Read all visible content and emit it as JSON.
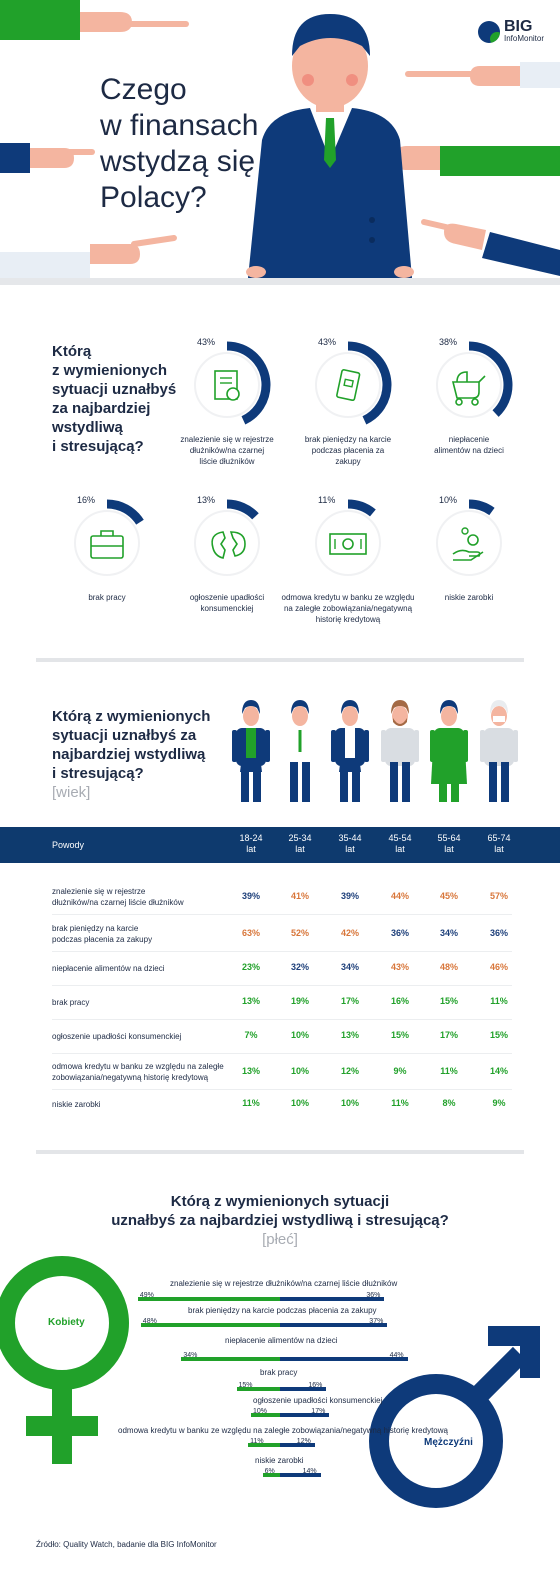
{
  "header": {
    "title_lines": [
      "Czego",
      "w finansach",
      "wstydzą się",
      "Polacy?"
    ],
    "logo_big": "BIG",
    "logo_sub": "InfoMonitor"
  },
  "section1": {
    "question_lines": [
      "Którą",
      "z wymienionych",
      "sytuacji uznałbyś",
      "za najbardziej",
      "wstydliwą",
      "i stresującą?"
    ],
    "items": [
      {
        "pct": "43%",
        "value": 43,
        "label_lines": [
          "znalezienie się w rejestrze",
          "dłużników/na czarnej",
          "liście dłużników"
        ],
        "icon": "document-icon"
      },
      {
        "pct": "43%",
        "value": 43,
        "label_lines": [
          "brak pieniędzy na karcie",
          "podczas płacenia za",
          "zakupy"
        ],
        "icon": "card-icon"
      },
      {
        "pct": "38%",
        "value": 38,
        "label_lines": [
          "niepłacenie",
          "alimentów na dzieci"
        ],
        "icon": "stroller-icon"
      },
      {
        "pct": "16%",
        "value": 16,
        "label_lines": [
          "brak pracy"
        ],
        "icon": "briefcase-icon"
      },
      {
        "pct": "13%",
        "value": 13,
        "label_lines": [
          "ogłoszenie upadłości",
          "konsumenckiej"
        ],
        "icon": "broken-piggy-icon"
      },
      {
        "pct": "11%",
        "value": 11,
        "label_lines": [
          "odmowa kredytu w banku ze względu",
          "na zaległe zobowiązania/negatywną",
          "historię kredytową"
        ],
        "icon": "banknote-icon"
      },
      {
        "pct": "10%",
        "value": 10,
        "label_lines": [
          "niskie zarobki"
        ],
        "icon": "coins-hand-icon"
      }
    ]
  },
  "section2": {
    "question_lines": [
      "Którą z wymienionych",
      "sytuacji uznałbyś za",
      "najbardziej wstydliwą",
      "i stresującą?"
    ],
    "subtitle": "[wiek]",
    "reasons_header": "Powody",
    "ages": [
      {
        "line1": "18-24",
        "line2": "lat"
      },
      {
        "line1": "25-34",
        "line2": "lat"
      },
      {
        "line1": "35-44",
        "line2": "lat"
      },
      {
        "line1": "45-54",
        "line2": "lat"
      },
      {
        "line1": "55-64",
        "line2": "lat"
      },
      {
        "line1": "65-74",
        "line2": "lat"
      }
    ],
    "colors": {
      "blue": "#1d3f7a",
      "orange": "#d8763a",
      "green": "#21a12a"
    }
  },
  "chart_data": [
    {
      "type": "table",
      "columns": [
        "18-24 lat",
        "25-34 lat",
        "35-44 lat",
        "45-54 lat",
        "55-64 lat",
        "65-74 lat"
      ],
      "rows": [
        {
          "label_lines": [
            "znalezienie się w rejestrze",
            "dłużników/na czarnej liście dłużników"
          ],
          "values": [
            "39%",
            "41%",
            "39%",
            "44%",
            "45%",
            "57%"
          ],
          "colors": [
            "blue",
            "orange",
            "blue",
            "orange",
            "orange",
            "orange"
          ]
        },
        {
          "label_lines": [
            "brak pieniędzy na karcie",
            "podczas płacenia za zakupy"
          ],
          "values": [
            "63%",
            "52%",
            "42%",
            "36%",
            "34%",
            "36%"
          ],
          "colors": [
            "orange",
            "orange",
            "orange",
            "blue",
            "blue",
            "blue"
          ]
        },
        {
          "label_lines": [
            "niepłacenie alimentów na dzieci"
          ],
          "values": [
            "23%",
            "32%",
            "34%",
            "43%",
            "48%",
            "46%"
          ],
          "colors": [
            "green",
            "blue",
            "blue",
            "orange",
            "orange",
            "orange"
          ]
        },
        {
          "label_lines": [
            "brak pracy"
          ],
          "values": [
            "13%",
            "19%",
            "17%",
            "16%",
            "15%",
            "11%"
          ],
          "colors": [
            "green",
            "green",
            "green",
            "green",
            "green",
            "green"
          ]
        },
        {
          "label_lines": [
            "ogłoszenie upadłości konsumenckiej"
          ],
          "values": [
            "7%",
            "10%",
            "13%",
            "15%",
            "17%",
            "15%"
          ],
          "colors": [
            "green",
            "green",
            "green",
            "green",
            "green",
            "green"
          ]
        },
        {
          "label_lines": [
            "odmowa kredytu w banku ze względu na zaległe",
            "zobowiązania/negatywną historię kredytową"
          ],
          "values": [
            "13%",
            "10%",
            "12%",
            "9%",
            "11%",
            "14%"
          ],
          "colors": [
            "green",
            "green",
            "green",
            "green",
            "green",
            "green"
          ]
        },
        {
          "label_lines": [
            "niskie zarobki"
          ],
          "values": [
            "11%",
            "10%",
            "10%",
            "11%",
            "8%",
            "9%"
          ],
          "colors": [
            "green",
            "green",
            "green",
            "green",
            "green",
            "green"
          ]
        }
      ]
    },
    {
      "type": "bar",
      "title_lines": [
        "Którą z wymienionych sytuacji",
        "uznałbyś za najbardziej wstydliwą i stresującą?"
      ],
      "subtitle": "[płeć]",
      "series": [
        {
          "name": "Kobiety",
          "color": "#21a12a",
          "values": [
            49,
            48,
            34,
            15,
            10,
            11,
            6
          ]
        },
        {
          "name": "Mężczyźni",
          "color": "#0e3a7a",
          "values": [
            36,
            37,
            44,
            16,
            17,
            12,
            14
          ]
        }
      ],
      "categories": [
        "znalezienie się w rejestrze dłużników/na czarnej liście dłużników",
        "brak pieniędzy na karcie podczas płacenia za zakupy",
        "niepłacenie alimentów na dzieci",
        "brak pracy",
        "ogłoszenie upadłości konsumenckiej",
        "odmowa kredytu w banku ze względu na zaległe zobowiązania/negatywną historię kredytową",
        "niskie zarobki"
      ]
    }
  ],
  "source": "Źródło: Quality Watch, badanie dla BIG InfoMonitor"
}
